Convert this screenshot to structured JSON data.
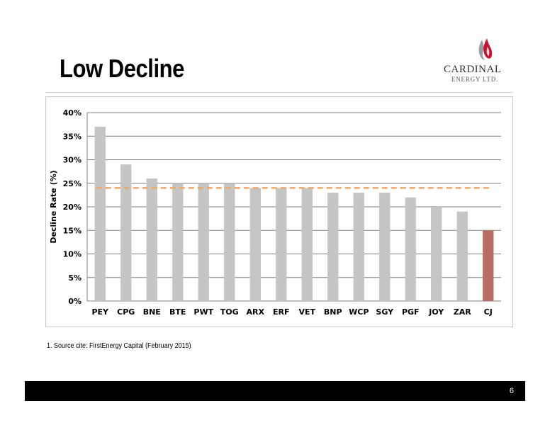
{
  "slide": {
    "title": "Low Decline",
    "source_note": "1. Source cite: FirstEnergy Capital (February 2015)",
    "page_number": "6"
  },
  "logo": {
    "name": "CARDINAL",
    "subtitle": "ENERGY LTD."
  },
  "colors": {
    "bar_default": "#c4c6c3",
    "bar_highlight": "#b86e62",
    "average_line": "#f0a868",
    "grid": "#7f7f7f",
    "footer": "#000000"
  },
  "chart_data": {
    "type": "bar",
    "ylabel": "Decline Rate (%)",
    "xlabel": "",
    "ylim": [
      0,
      40
    ],
    "yticks": [
      0,
      5,
      10,
      15,
      20,
      25,
      30,
      35,
      40
    ],
    "ytick_labels": [
      "0%",
      "5%",
      "10%",
      "15%",
      "20%",
      "25%",
      "30%",
      "35%",
      "40%"
    ],
    "categories": [
      "PEY",
      "CPG",
      "BNE",
      "BTE",
      "PWT",
      "TOG",
      "ARX",
      "ERF",
      "VET",
      "BNP",
      "WCP",
      "SGY",
      "PGF",
      "JOY",
      "ZAR",
      "CJ"
    ],
    "values": [
      37,
      29,
      26,
      25,
      25,
      25,
      24,
      24,
      24,
      23,
      23,
      23,
      22,
      20,
      19,
      15
    ],
    "highlight_category": "CJ",
    "average_line": {
      "value": 24,
      "style": "dashed"
    },
    "grid": true,
    "legend": false
  }
}
